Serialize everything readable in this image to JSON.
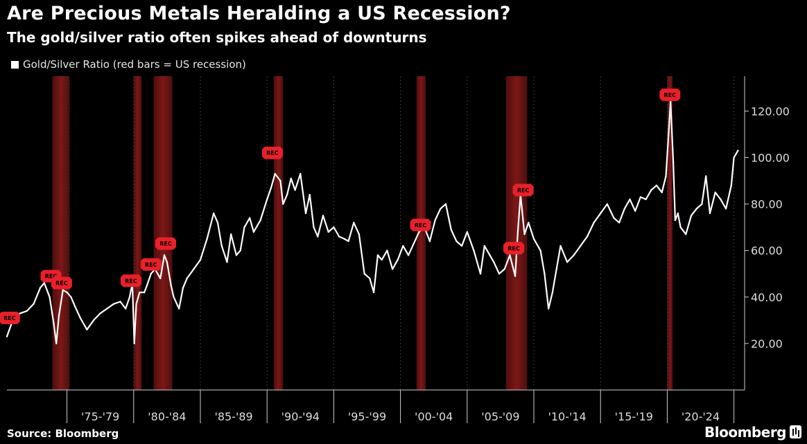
{
  "title": "Are Precious Metals Heralding a US Recession?",
  "subtitle": "The gold/silver ratio often spikes ahead of downturns",
  "legend": {
    "label": "Gold/Silver Ratio (red bars = US recession)"
  },
  "source": "Source: Bloomberg",
  "brand": "Bloomberg",
  "colors": {
    "background": "#000000",
    "line": "#ffffff",
    "recession": "#8b1a1a",
    "marker": "#e8202a",
    "grid": "#3a3a3a"
  },
  "chart_data": {
    "type": "line",
    "title": "Are Precious Metals Heralding a US Recession?",
    "subtitle": "The gold/silver ratio often spikes ahead of downturns",
    "ylabel": "",
    "xlabel": "",
    "xlim": [
      1970.5,
      2025.8
    ],
    "ylim": [
      0,
      135
    ],
    "y_ticks": [
      20,
      40,
      60,
      80,
      100,
      120
    ],
    "y_tick_labels": [
      "20.00",
      "40.00",
      "60.00",
      "80.00",
      "100.00",
      "120.00"
    ],
    "x_dividers": [
      1975,
      1980,
      1985,
      1990,
      1995,
      2000,
      2005,
      2010,
      2015,
      2020,
      2025
    ],
    "x_tick_labels": [
      "'75-'79",
      "'80-'84",
      "'85-'89",
      "'90-'94",
      "'95-'99",
      "'00-'04",
      "'05-'09",
      "'10-'14",
      "'15-'19",
      "'20-'24"
    ],
    "recessions": [
      {
        "start": 1973.9,
        "end": 1975.2
      },
      {
        "start": 1980.0,
        "end": 1980.6
      },
      {
        "start": 1981.5,
        "end": 1982.9
      },
      {
        "start": 1990.5,
        "end": 1991.2
      },
      {
        "start": 2001.2,
        "end": 2001.9
      },
      {
        "start": 2007.9,
        "end": 2009.5
      },
      {
        "start": 2020.0,
        "end": 2020.4
      }
    ],
    "markers": [
      {
        "x": 1970.7,
        "y": 31,
        "label": "REC"
      },
      {
        "x": 1973.8,
        "y": 49,
        "label": "REC"
      },
      {
        "x": 1974.6,
        "y": 46,
        "label": "REC"
      },
      {
        "x": 1979.8,
        "y": 47,
        "label": "REC"
      },
      {
        "x": 1981.3,
        "y": 54,
        "label": "REC"
      },
      {
        "x": 1982.4,
        "y": 63,
        "label": "REC"
      },
      {
        "x": 1990.4,
        "y": 102,
        "label": "REC"
      },
      {
        "x": 2001.5,
        "y": 71,
        "label": "REC"
      },
      {
        "x": 2008.5,
        "y": 61,
        "label": "REC"
      },
      {
        "x": 2009.2,
        "y": 86,
        "label": "REC"
      },
      {
        "x": 2020.2,
        "y": 127,
        "label": "REC"
      }
    ],
    "series": [
      {
        "name": "Gold/Silver Ratio (red bars = US recession)",
        "x": [
          1970.5,
          1971.0,
          1971.5,
          1972.0,
          1972.5,
          1973.0,
          1973.3,
          1973.7,
          1974.0,
          1974.2,
          1974.4,
          1974.7,
          1975.0,
          1975.3,
          1975.6,
          1976.0,
          1976.5,
          1977.0,
          1977.5,
          1978.0,
          1978.5,
          1979.0,
          1979.4,
          1979.7,
          1979.9,
          1980.05,
          1980.2,
          1980.45,
          1980.8,
          1981.0,
          1981.3,
          1981.6,
          1982.0,
          1982.3,
          1982.5,
          1982.8,
          1983.0,
          1983.4,
          1983.7,
          1984.0,
          1984.5,
          1985.0,
          1985.5,
          1986.0,
          1986.3,
          1986.6,
          1987.0,
          1987.3,
          1987.7,
          1988.0,
          1988.3,
          1988.7,
          1989.0,
          1989.5,
          1990.0,
          1990.3,
          1990.6,
          1991.0,
          1991.2,
          1991.5,
          1991.8,
          1992.1,
          1992.5,
          1992.9,
          1993.2,
          1993.5,
          1993.8,
          1994.2,
          1994.6,
          1995.0,
          1995.4,
          1995.8,
          1996.1,
          1996.5,
          1996.9,
          1997.3,
          1997.7,
          1998.0,
          1998.3,
          1998.6,
          1999.0,
          1999.4,
          1999.8,
          2000.2,
          2000.6,
          2001.0,
          2001.4,
          2001.8,
          2002.2,
          2002.6,
          2003.0,
          2003.4,
          2003.8,
          2004.2,
          2004.6,
          2005.0,
          2005.5,
          2006.0,
          2006.3,
          2006.7,
          2007.0,
          2007.4,
          2007.8,
          2008.2,
          2008.6,
          2008.8,
          2009.0,
          2009.3,
          2009.6,
          2010.0,
          2010.5,
          2010.8,
          2011.1,
          2011.4,
          2011.7,
          2012.0,
          2012.5,
          2013.0,
          2013.5,
          2014.0,
          2014.5,
          2015.0,
          2015.5,
          2016.0,
          2016.4,
          2016.8,
          2017.2,
          2017.6,
          2018.0,
          2018.4,
          2018.8,
          2019.2,
          2019.6,
          2019.9,
          2020.1,
          2020.25,
          2020.45,
          2020.6,
          2020.8,
          2021.0,
          2021.4,
          2021.8,
          2022.2,
          2022.6,
          2022.9,
          2023.2,
          2023.6,
          2024.0,
          2024.4,
          2024.8,
          2025.0,
          2025.3
        ],
        "values": [
          23,
          31,
          33,
          34,
          37,
          44,
          46,
          40,
          29,
          20,
          32,
          43,
          42,
          40,
          36,
          31,
          26,
          30,
          33,
          35,
          37,
          38,
          35,
          40,
          46,
          20,
          37,
          42,
          42,
          45,
          50,
          52,
          48,
          58,
          55,
          45,
          40,
          35,
          44,
          48,
          52,
          56,
          65,
          76,
          72,
          62,
          55,
          67,
          58,
          60,
          70,
          74,
          68,
          73,
          82,
          87,
          93,
          90,
          80,
          84,
          91,
          86,
          93,
          76,
          84,
          70,
          66,
          75,
          68,
          70,
          66,
          65,
          64,
          72,
          67,
          50,
          48,
          42,
          58,
          56,
          60,
          52,
          56,
          62,
          58,
          63,
          68,
          70,
          64,
          73,
          78,
          80,
          69,
          64,
          62,
          68,
          60,
          50,
          62,
          58,
          55,
          50,
          52,
          58,
          49,
          68,
          84,
          67,
          72,
          65,
          60,
          50,
          35,
          42,
          52,
          62,
          55,
          58,
          62,
          66,
          72,
          76,
          80,
          74,
          72,
          78,
          82,
          77,
          83,
          82,
          86,
          88,
          85,
          92,
          110,
          124,
          98,
          73,
          76,
          70,
          67,
          75,
          78,
          80,
          92,
          76,
          85,
          82,
          78,
          88,
          100,
          103
        ]
      }
    ]
  }
}
